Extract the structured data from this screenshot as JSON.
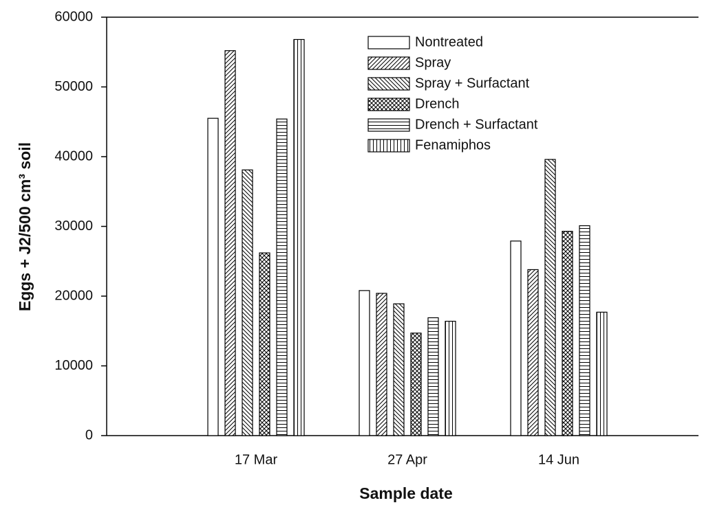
{
  "chart_data": {
    "type": "bar",
    "x_label": "Sample date",
    "y_label": "Eggs + J2/500 cm³ soil",
    "categories": [
      "17 Mar",
      "27 Apr",
      "14 Jun"
    ],
    "series": [
      {
        "name": "Nontreated",
        "color": "#000000",
        "pattern": "none",
        "values": [
          45500,
          20800,
          27900
        ]
      },
      {
        "name": "Spray",
        "color": "#000000",
        "pattern": "diag-up",
        "values": [
          55200,
          20400,
          23800
        ]
      },
      {
        "name": "Spray + Surfactant",
        "color": "#000000",
        "pattern": "diag-down",
        "values": [
          38100,
          18900,
          39600
        ]
      },
      {
        "name": "Drench",
        "color": "#000000",
        "pattern": "cross",
        "values": [
          26200,
          14700,
          29300
        ]
      },
      {
        "name": "Drench + Surfactant",
        "color": "#000000",
        "pattern": "horizontal",
        "values": [
          45400,
          16900,
          30100
        ]
      },
      {
        "name": "Fenamiphos",
        "color": "#000000",
        "pattern": "vertical",
        "values": [
          56800,
          16400,
          17700
        ]
      }
    ],
    "ylim": [
      0,
      60000
    ],
    "yticks": [
      0,
      10000,
      20000,
      30000,
      40000,
      50000,
      60000
    ]
  }
}
